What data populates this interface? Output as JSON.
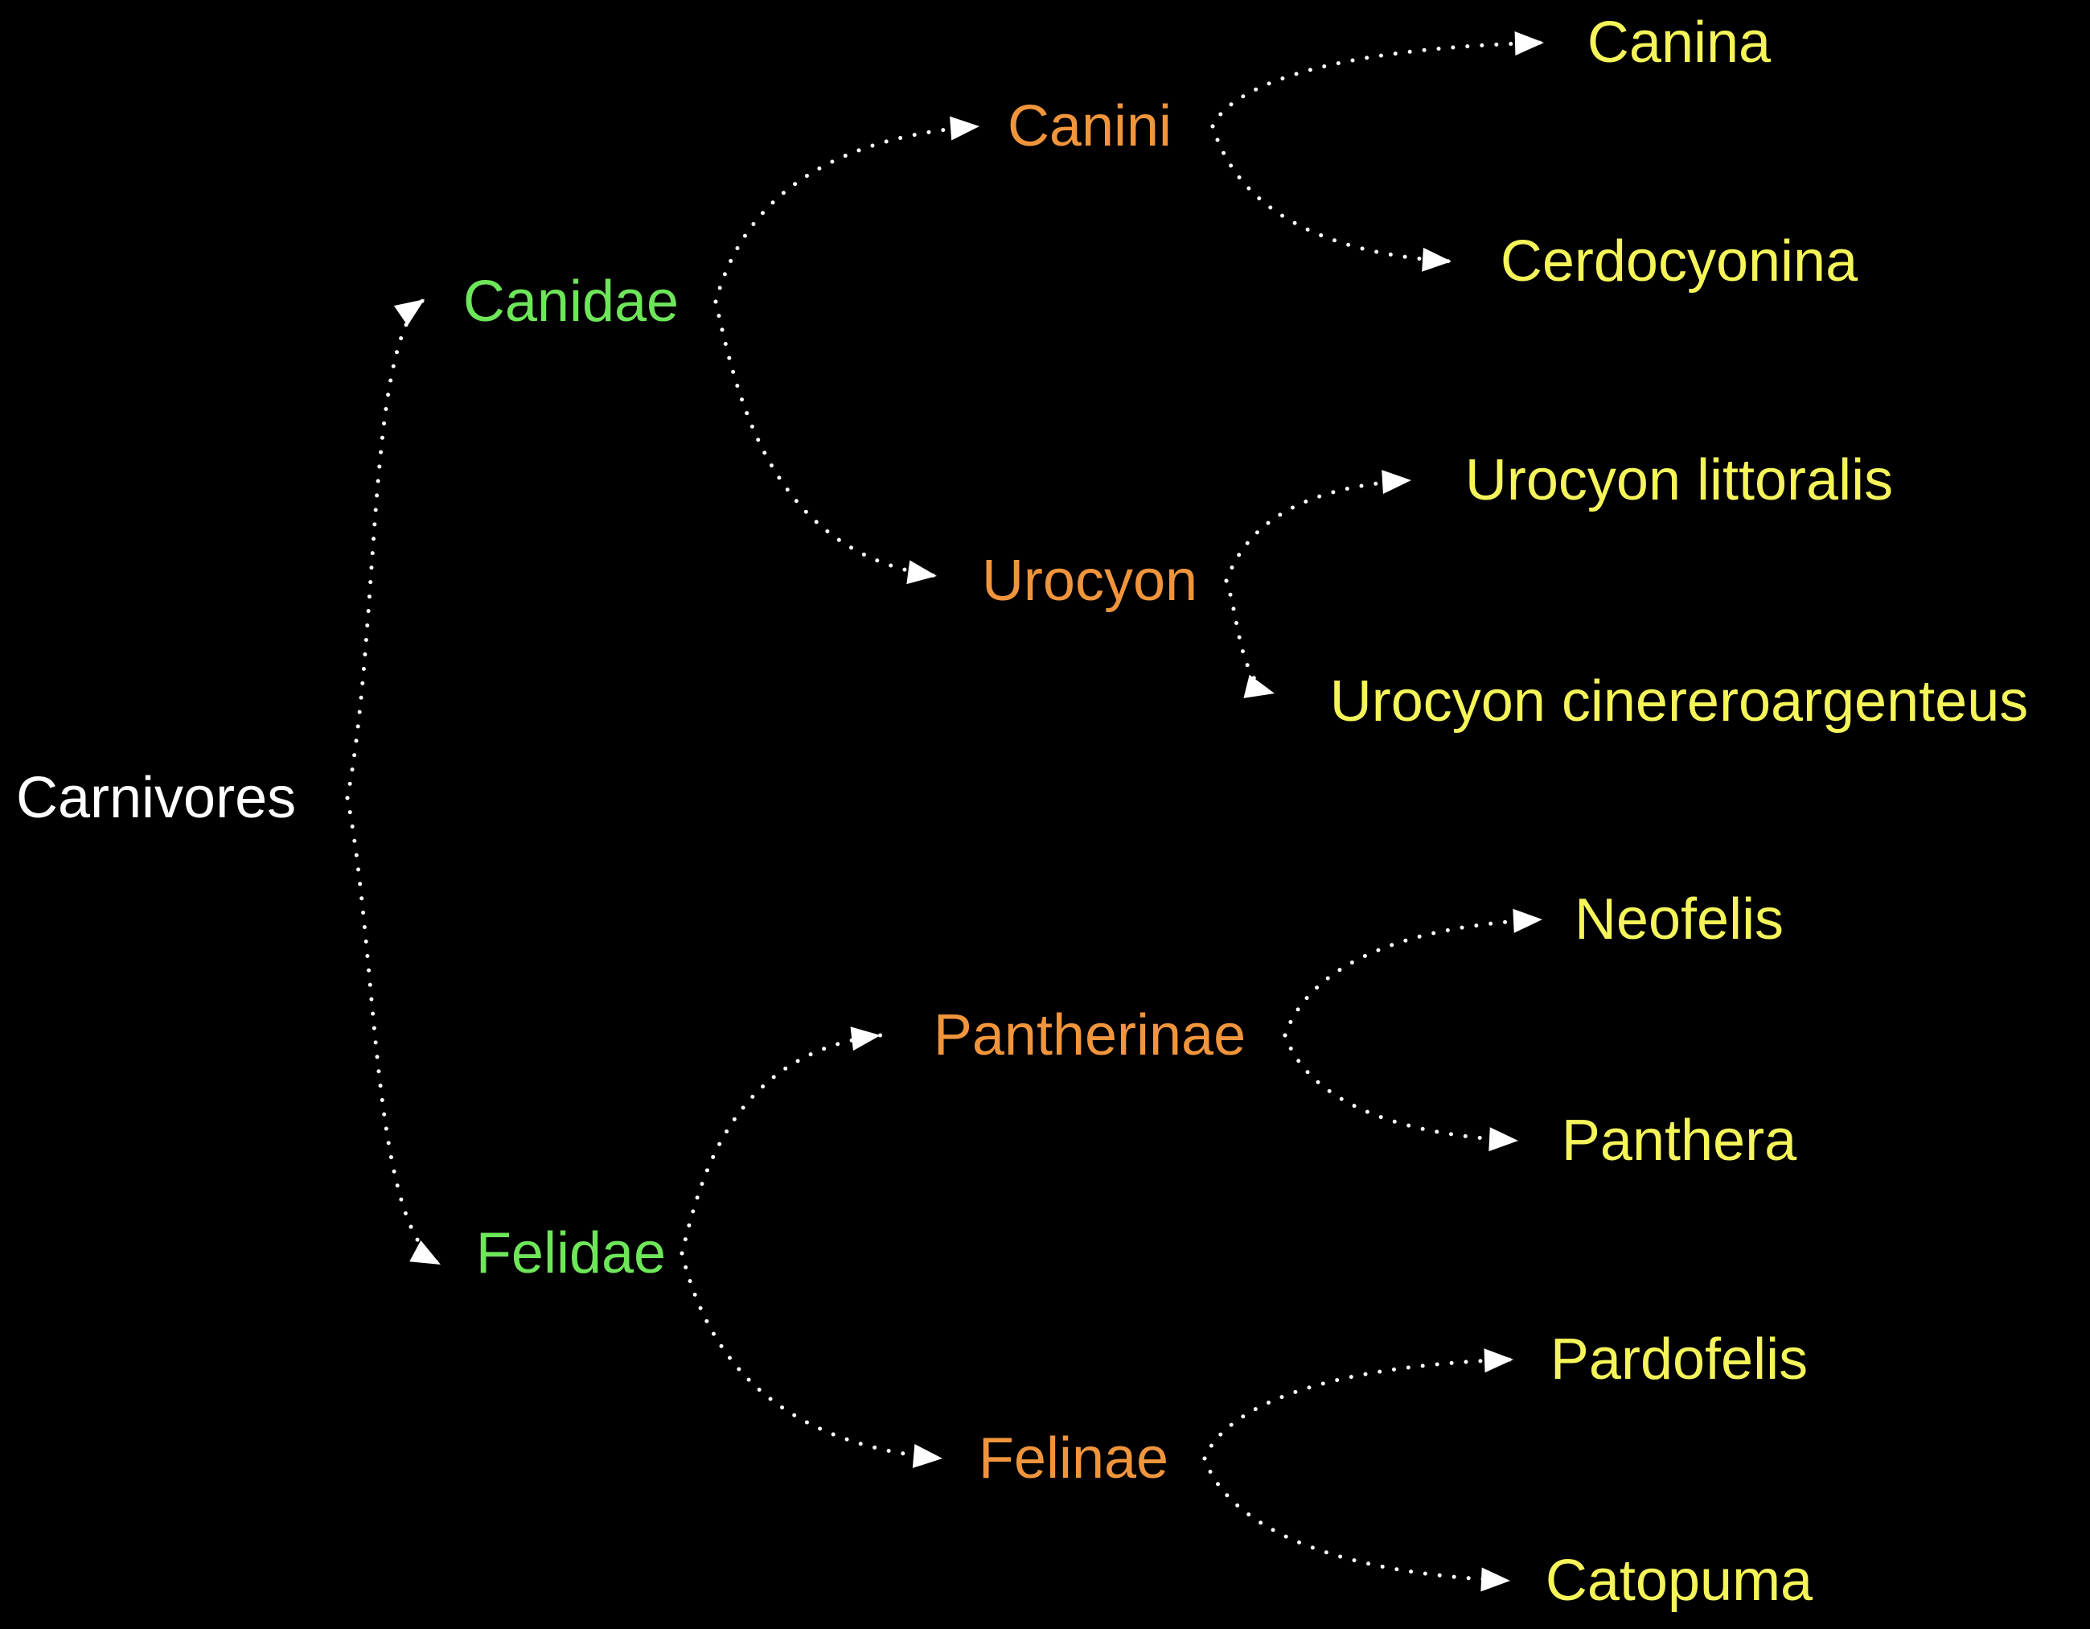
{
  "colors": {
    "background": "#000000",
    "root": "#ffffff",
    "family": "#6ee65a",
    "subfamily": "#f0953c",
    "genus": "#f5f55a",
    "edge": "#ffffff"
  },
  "tree": {
    "root": {
      "id": "carnivores",
      "label": "Carnivores"
    },
    "families": [
      {
        "id": "canidae",
        "label": "Canidae",
        "children": [
          {
            "id": "canini",
            "label": "Canini",
            "children": [
              {
                "id": "canina",
                "label": "Canina"
              },
              {
                "id": "cerdocyonina",
                "label": "Cerdocyonina"
              }
            ]
          },
          {
            "id": "urocyon",
            "label": "Urocyon",
            "children": [
              {
                "id": "urocyon-littoralis",
                "label": "Urocyon littoralis"
              },
              {
                "id": "urocyon-cinereoargenteus",
                "label": "Urocyon cinereroargenteus"
              }
            ]
          }
        ]
      },
      {
        "id": "felidae",
        "label": "Felidae",
        "children": [
          {
            "id": "pantherinae",
            "label": "Pantherinae",
            "children": [
              {
                "id": "neofelis",
                "label": "Neofelis"
              },
              {
                "id": "panthera",
                "label": "Panthera"
              }
            ]
          },
          {
            "id": "felinae",
            "label": "Felinae",
            "children": [
              {
                "id": "pardofelis",
                "label": "Pardofelis"
              },
              {
                "id": "catopuma",
                "label": "Catopuma"
              }
            ]
          }
        ]
      }
    ]
  }
}
